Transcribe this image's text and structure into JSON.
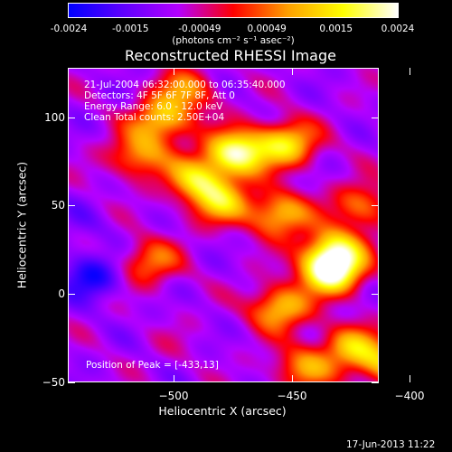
{
  "colorbar": {
    "tick_labels": [
      "-0.0024",
      "-0.0015",
      "-0.00049",
      "0.00049",
      "0.0015",
      "0.0024"
    ],
    "tick_values": [
      -0.0024,
      -0.0015,
      -0.00049,
      0.00049,
      0.0015,
      0.0024
    ],
    "unit_label": "(photons cm⁻² s⁻¹ asec⁻²)",
    "colors": [
      "#0000ff",
      "#5f00ff",
      "#b400ff",
      "#ff0000",
      "#ffa000",
      "#ffff00",
      "#ffffff"
    ]
  },
  "annotations": {
    "time_range": "21-Jul-2004 06:32:00.000 to 06:35:40.000",
    "detectors": "Detectors: 4F 5F 6F 7F 8F, Att 0",
    "energy": "Energy Range: 6.0 - 12.0 keV",
    "method": "Clean    Total counts: 2.50E+04",
    "peak": "Position of Peak = [-433,13]"
  },
  "footer": {
    "date": "17-Jun-2013 11:22"
  },
  "chart_data": {
    "type": "heatmap",
    "title": "Reconstructed RHESSI Image",
    "xlabel": "Heliocentric X (arcsec)",
    "ylabel": "Heliocentric Y (arcsec)",
    "xlim": [
      -545,
      -413
    ],
    "ylim": [
      -50,
      128
    ],
    "x_ticks": [
      -500,
      -450,
      -400
    ],
    "x_tick_labels": [
      "−500",
      "−450",
      "−400"
    ],
    "y_ticks": [
      -50,
      0,
      50,
      100
    ],
    "y_tick_labels": [
      "−50",
      "0",
      "50",
      "100"
    ],
    "value_range": [
      -0.0024,
      0.0024
    ],
    "peak_position": [
      -433,
      13
    ],
    "sources": [
      {
        "x": -433,
        "y": 13,
        "value": 0.0024
      },
      {
        "x": -473,
        "y": 80,
        "value": 0.0021
      },
      {
        "x": -452,
        "y": 85,
        "value": 0.0014
      },
      {
        "x": -490,
        "y": 65,
        "value": 0.0012
      },
      {
        "x": -505,
        "y": 98,
        "value": 0.0011
      },
      {
        "x": -455,
        "y": 45,
        "value": 0.0012
      },
      {
        "x": -480,
        "y": 52,
        "value": 0.001
      },
      {
        "x": -455,
        "y": -8,
        "value": 0.0012
      },
      {
        "x": -432,
        "y": 25,
        "value": 0.0013
      },
      {
        "x": -515,
        "y": 78,
        "value": 0.0008
      },
      {
        "x": -425,
        "y": -30,
        "value": 0.0009
      },
      {
        "x": -445,
        "y": -42,
        "value": 0.0007
      },
      {
        "x": -410,
        "y": -40,
        "value": 0.0009
      },
      {
        "x": -510,
        "y": 18,
        "value": 0.0006
      },
      {
        "x": -420,
        "y": 50,
        "value": 0.0006
      },
      {
        "x": -495,
        "y": 115,
        "value": 0.0006
      },
      {
        "x": -535,
        "y": 10,
        "value": -0.0022
      },
      {
        "x": -540,
        "y": 40,
        "value": -0.0012
      },
      {
        "x": -525,
        "y": -20,
        "value": -0.0009
      },
      {
        "x": -410,
        "y": 90,
        "value": -0.0008
      },
      {
        "x": -500,
        "y": -30,
        "value": -0.0007
      }
    ]
  }
}
